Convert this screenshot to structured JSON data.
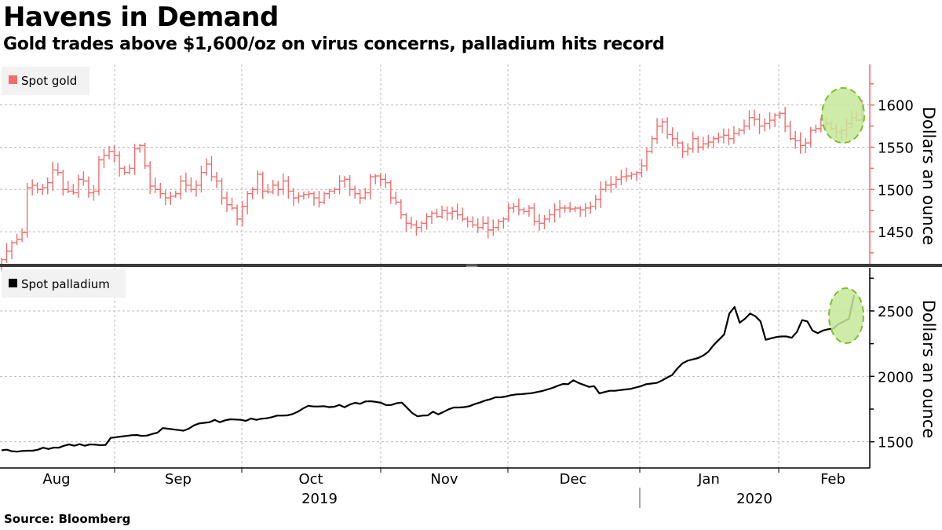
{
  "header": {
    "title": "Havens in Demand",
    "subtitle": "Gold trades above $1,600/oz on virus concerns, palladium hits record"
  },
  "footer": {
    "source": "Source: Bloomberg"
  },
  "colors": {
    "gold": "#f26d6d",
    "gold_axis": "#f26d6d",
    "palladium": "#000000",
    "highlight_fill": "#c5e89a",
    "highlight_stroke": "#7cbf2a",
    "grid": "#bbbbbb",
    "divider": "#3a3a3a",
    "legend_bg": "#f2f2f2"
  },
  "x_axis": {
    "months": [
      "Aug",
      "Sep",
      "Oct",
      "Nov",
      "Dec",
      "Jan",
      "Feb"
    ],
    "years": [
      "2019",
      "2020"
    ]
  },
  "chart_data": [
    {
      "type": "line",
      "subtype": "ohlc-bar",
      "title": "Spot gold",
      "legend": "Spot gold",
      "legend_position": "top-left",
      "ylabel": "Dollars an ounce",
      "y_ticks": [
        1450,
        1500,
        1550,
        1600
      ],
      "ylim": [
        1412,
        1648
      ],
      "grid": true,
      "x_start": "2019-07-23",
      "x_end": "2020-02-05",
      "close": [
        1417,
        1427,
        1437,
        1441,
        1449,
        1502,
        1505,
        1500,
        1502,
        1508,
        1523,
        1520,
        1500,
        1498,
        1496,
        1512,
        1510,
        1496,
        1498,
        1535,
        1540,
        1545,
        1540,
        1525,
        1520,
        1525,
        1548,
        1552,
        1528,
        1504,
        1500,
        1495,
        1490,
        1492,
        1495,
        1510,
        1505,
        1500,
        1505,
        1520,
        1530,
        1515,
        1510,
        1490,
        1482,
        1478,
        1465,
        1480,
        1495,
        1500,
        1518,
        1498,
        1497,
        1505,
        1500,
        1510,
        1498,
        1490,
        1492,
        1494,
        1495,
        1490,
        1485,
        1495,
        1498,
        1500,
        1510,
        1512,
        1500,
        1495,
        1490,
        1496,
        1515,
        1516,
        1512,
        1508,
        1490,
        1485,
        1470,
        1460,
        1458,
        1455,
        1460,
        1468,
        1472,
        1468,
        1475,
        1472,
        1474,
        1470,
        1465,
        1462,
        1458,
        1455,
        1460,
        1452,
        1455,
        1462,
        1465,
        1478,
        1480,
        1476,
        1474,
        1478,
        1462,
        1460,
        1465,
        1470,
        1476,
        1478,
        1478,
        1477,
        1478,
        1476,
        1478,
        1480,
        1488,
        1500,
        1505,
        1506,
        1512,
        1515,
        1516,
        1518,
        1520,
        1528,
        1545,
        1560,
        1575,
        1580,
        1565,
        1560,
        1555,
        1545,
        1548,
        1560,
        1550,
        1554,
        1556,
        1560,
        1562,
        1564,
        1560,
        1566,
        1570,
        1575,
        1585,
        1583,
        1575,
        1578,
        1582,
        1588,
        1590,
        1575,
        1560,
        1558,
        1552,
        1555,
        1570,
        1572,
        1576,
        1578,
        1572,
        1568,
        1570,
        1578,
        1585,
        1582,
        1600
      ],
      "high_low_spread": "vertical bar per trading day"
    },
    {
      "type": "line",
      "title": "Spot palladium",
      "legend": "Spot palladium",
      "legend_position": "top-left",
      "ylabel": "Dollars an ounce",
      "y_ticks": [
        1500,
        2000,
        2500
      ],
      "ylim": [
        1300,
        2830
      ],
      "grid": true,
      "x_start": "2019-07-23",
      "x_end": "2020-02-05",
      "values": [
        1435,
        1440,
        1428,
        1425,
        1430,
        1432,
        1432,
        1440,
        1455,
        1445,
        1455,
        1455,
        1470,
        1480,
        1470,
        1482,
        1470,
        1480,
        1478,
        1474,
        1476,
        1530,
        1535,
        1540,
        1545,
        1550,
        1552,
        1545,
        1548,
        1560,
        1570,
        1605,
        1600,
        1595,
        1590,
        1585,
        1600,
        1625,
        1640,
        1645,
        1650,
        1668,
        1650,
        1664,
        1672,
        1670,
        1668,
        1660,
        1678,
        1668,
        1676,
        1680,
        1688,
        1700,
        1700,
        1702,
        1712,
        1730,
        1755,
        1775,
        1770,
        1770,
        1772,
        1765,
        1768,
        1782,
        1764,
        1785,
        1798,
        1790,
        1808,
        1810,
        1805,
        1798,
        1780,
        1782,
        1795,
        1800,
        1760,
        1720,
        1695,
        1700,
        1702,
        1730,
        1710,
        1728,
        1748,
        1762,
        1762,
        1765,
        1772,
        1788,
        1800,
        1815,
        1825,
        1840,
        1840,
        1846,
        1856,
        1862,
        1864,
        1868,
        1872,
        1880,
        1888,
        1900,
        1912,
        1928,
        1942,
        1940,
        1970,
        1950,
        1935,
        1920,
        1925,
        1870,
        1880,
        1890,
        1890,
        1895,
        1900,
        1904,
        1915,
        1925,
        1940,
        1945,
        1950,
        1968,
        1990,
        2010,
        2060,
        2100,
        2120,
        2130,
        2140,
        2160,
        2190,
        2240,
        2280,
        2320,
        2480,
        2530,
        2410,
        2440,
        2480,
        2460,
        2420,
        2280,
        2290,
        2300,
        2305,
        2305,
        2295,
        2340,
        2430,
        2420,
        2350,
        2330,
        2350,
        2360,
        2365,
        2400,
        2420,
        2440,
        2620
      ]
    }
  ],
  "annotations": [
    {
      "series": "Spot gold",
      "shape": "dashed-ellipse",
      "meaning": "latest gold record highlight"
    },
    {
      "series": "Spot palladium",
      "shape": "dashed-ellipse",
      "meaning": "palladium record highlight"
    }
  ]
}
